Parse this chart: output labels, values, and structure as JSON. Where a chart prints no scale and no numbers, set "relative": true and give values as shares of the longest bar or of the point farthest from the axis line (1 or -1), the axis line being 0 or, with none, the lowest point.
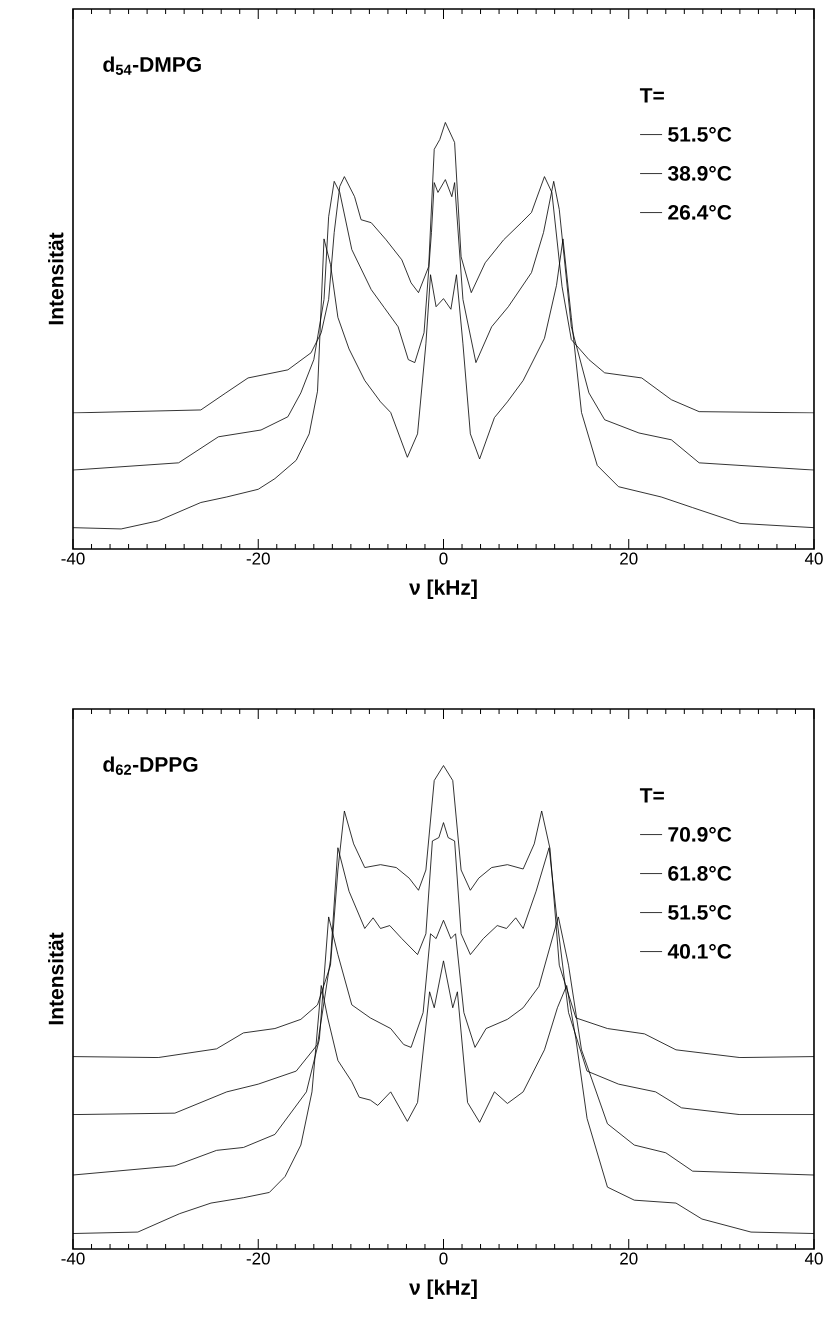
{
  "chart_data": [
    {
      "type": "line",
      "title": "d$_{54}$-DMPG",
      "xlabel": "ν [kHz]",
      "ylabel": "Intensität",
      "legend_title": "T=",
      "legend": "top right",
      "relative": true,
      "xlim": [
        -40,
        40
      ],
      "xticks": [
        -40,
        -20,
        0,
        20,
        40
      ],
      "series": [
        {
          "name": "51.5°C",
          "color": "#000000",
          "x": [
            -40,
            -26.2,
            -23.5,
            -21.1,
            -16.8,
            -14.3,
            -13.2,
            -12.4,
            -11.8,
            -11.2,
            -10.7,
            -9.6,
            -8.9,
            -7.8,
            -6.2,
            -4.5,
            -3.5,
            -2.7,
            -1.6,
            -1.0,
            -0.4,
            0.2,
            1.2,
            1.9,
            3.0,
            4.5,
            6.5,
            8.4,
            9.5,
            10.9,
            11.7,
            12.8,
            13.8,
            15.7,
            17.4,
            21.4,
            24.6,
            27.6,
            40
          ],
          "values": [
            0.319,
            0.326,
            0.366,
            0.401,
            0.42,
            0.46,
            0.507,
            0.585,
            0.742,
            0.85,
            0.873,
            0.826,
            0.772,
            0.765,
            0.725,
            0.678,
            0.624,
            0.601,
            0.662,
            0.937,
            0.96,
            1.0,
            0.953,
            0.685,
            0.601,
            0.671,
            0.725,
            0.765,
            0.789,
            0.873,
            0.836,
            0.615,
            0.491,
            0.444,
            0.413,
            0.401,
            0.35,
            0.322,
            0.319
          ]
        },
        {
          "name": "38.9°C",
          "color": "#000000",
          "x": [
            -40,
            -28.6,
            -24.3,
            -19.7,
            -16.8,
            -15.4,
            -14.0,
            -12.9,
            -12.4,
            -11.8,
            -11.2,
            -9.9,
            -7.8,
            -6.4,
            -4.9,
            -3.8,
            -3.1,
            -2.1,
            -1.3,
            -1.0,
            -0.6,
            0.2,
            0.9,
            1.2,
            2.1,
            3.5,
            5.2,
            7.0,
            9.5,
            10.8,
            11.9,
            12.5,
            13.8,
            15.7,
            17.4,
            21.1,
            24.6,
            27.6,
            40
          ],
          "values": [
            0.185,
            0.202,
            0.263,
            0.279,
            0.31,
            0.366,
            0.444,
            0.585,
            0.779,
            0.862,
            0.836,
            0.702,
            0.608,
            0.566,
            0.521,
            0.444,
            0.437,
            0.507,
            0.742,
            0.859,
            0.836,
            0.866,
            0.826,
            0.859,
            0.585,
            0.437,
            0.521,
            0.568,
            0.648,
            0.742,
            0.862,
            0.796,
            0.521,
            0.366,
            0.303,
            0.272,
            0.256,
            0.202,
            0.185
          ]
        },
        {
          "name": "26.4°C",
          "color": "#000000",
          "x": [
            -40,
            -34.8,
            -30.8,
            -26.2,
            -23.4,
            -20,
            -18.2,
            -15.9,
            -14.5,
            -13.6,
            -12.9,
            -12.2,
            -11.4,
            -10.2,
            -8.5,
            -6.8,
            -5.7,
            -3.9,
            -2.8,
            -1.9,
            -1.4,
            -0.8,
            0,
            0.8,
            1.4,
            2.1,
            2.9,
            3.9,
            5.5,
            6.9,
            8.6,
            10.9,
            12.2,
            12.9,
            13.8,
            14.9,
            16.6,
            18.9,
            23.5,
            26.9,
            32.0,
            40
          ],
          "values": [
            0.05,
            0.047,
            0.066,
            0.109,
            0.122,
            0.14,
            0.165,
            0.208,
            0.27,
            0.37,
            0.727,
            0.667,
            0.543,
            0.469,
            0.395,
            0.345,
            0.32,
            0.215,
            0.27,
            0.481,
            0.643,
            0.568,
            0.587,
            0.562,
            0.643,
            0.481,
            0.27,
            0.211,
            0.308,
            0.345,
            0.395,
            0.494,
            0.618,
            0.727,
            0.543,
            0.32,
            0.196,
            0.146,
            0.122,
            0.097,
            0.06,
            0.05
          ]
        }
      ]
    },
    {
      "type": "line",
      "title": "d$_{62}$-DPPG",
      "xlabel": "ν [kHz]",
      "ylabel": "Intensität",
      "legend_title": "T=",
      "legend": "top right",
      "relative": true,
      "xlim": [
        -40,
        40
      ],
      "xticks": [
        -40,
        -20,
        0,
        20,
        40
      ],
      "series": [
        {
          "name": "70.9°C",
          "color": "#000000",
          "x": [
            -40,
            -30.8,
            -24.5,
            -21.6,
            -18.2,
            -15.4,
            -13.6,
            -12.2,
            -11.4,
            -10.7,
            -9.7,
            -8.5,
            -6.8,
            -5.1,
            -3.7,
            -2.7,
            -1.9,
            -1.0,
            0,
            1.0,
            1.9,
            2.9,
            3.8,
            5.2,
            6.9,
            8.6,
            9.8,
            10.6,
            11.5,
            12.5,
            14.3,
            17.7,
            21.7,
            25.1,
            32,
            40
          ],
          "values": [
            0.398,
            0.396,
            0.414,
            0.447,
            0.456,
            0.475,
            0.505,
            0.587,
            0.784,
            0.906,
            0.838,
            0.789,
            0.795,
            0.789,
            0.767,
            0.742,
            0.784,
            0.969,
            1.0,
            0.969,
            0.784,
            0.742,
            0.767,
            0.789,
            0.795,
            0.786,
            0.838,
            0.906,
            0.828,
            0.587,
            0.478,
            0.456,
            0.445,
            0.412,
            0.396,
            0.398
          ]
        },
        {
          "name": "61.8°C",
          "color": "#000000",
          "x": [
            -40,
            -29.0,
            -23.4,
            -20,
            -15.9,
            -13.6,
            -12.2,
            -11.4,
            -10.2,
            -8.5,
            -7.6,
            -6.8,
            -5.8,
            -4.5,
            -2.8,
            -1.9,
            -1.2,
            -0.5,
            0,
            0.5,
            1.2,
            1.9,
            2.9,
            4.3,
            5.8,
            6.8,
            7.8,
            8.6,
            10.0,
            11.4,
            12.3,
            13.5,
            15.5,
            18.9,
            22.9,
            25.7,
            32,
            40
          ],
          "values": [
            0.278,
            0.281,
            0.325,
            0.341,
            0.368,
            0.423,
            0.598,
            0.83,
            0.74,
            0.663,
            0.685,
            0.663,
            0.669,
            0.642,
            0.609,
            0.652,
            0.844,
            0.851,
            0.882,
            0.851,
            0.844,
            0.652,
            0.609,
            0.642,
            0.669,
            0.663,
            0.685,
            0.663,
            0.74,
            0.83,
            0.674,
            0.489,
            0.368,
            0.341,
            0.325,
            0.292,
            0.278,
            0.278
          ]
        },
        {
          "name": "51.5°C",
          "color": "#000000",
          "x": [
            -40,
            -29,
            -24.5,
            -21.6,
            -18.2,
            -14.8,
            -13.4,
            -12.4,
            -11.4,
            -9.9,
            -7.9,
            -5.7,
            -4.3,
            -3.5,
            -2.2,
            -1.4,
            -0.8,
            0,
            0.8,
            1.3,
            2.2,
            3.4,
            4.6,
            6.9,
            8.6,
            10.3,
            12.4,
            13.5,
            14.9,
            17.7,
            20.6,
            24.0,
            26.9,
            40
          ],
          "values": [
            0.153,
            0.172,
            0.204,
            0.21,
            0.237,
            0.325,
            0.434,
            0.687,
            0.609,
            0.505,
            0.478,
            0.456,
            0.423,
            0.417,
            0.489,
            0.652,
            0.642,
            0.68,
            0.642,
            0.652,
            0.489,
            0.417,
            0.456,
            0.475,
            0.499,
            0.543,
            0.687,
            0.587,
            0.412,
            0.259,
            0.215,
            0.199,
            0.161,
            0.153
          ]
        },
        {
          "name": "40.1°C",
          "color": "#000000",
          "x": [
            -40,
            -33.0,
            -28.5,
            -25.1,
            -21.6,
            -18.8,
            -17.1,
            -15.4,
            -14.2,
            -13.2,
            -12.5,
            -11.4,
            -9.9,
            -9.1,
            -7.9,
            -7.1,
            -5.7,
            -3.9,
            -2.8,
            -1.5,
            -1.0,
            0,
            1.0,
            1.5,
            2.6,
            3.9,
            5.5,
            6.9,
            8.6,
            10.9,
            12.3,
            13.3,
            14.3,
            15.5,
            17.7,
            20.6,
            25.1,
            27.9,
            33.2,
            40
          ],
          "values": [
            0.032,
            0.035,
            0.073,
            0.095,
            0.106,
            0.117,
            0.15,
            0.215,
            0.325,
            0.545,
            0.478,
            0.39,
            0.346,
            0.314,
            0.308,
            0.297,
            0.325,
            0.264,
            0.303,
            0.532,
            0.499,
            0.596,
            0.499,
            0.532,
            0.303,
            0.262,
            0.325,
            0.301,
            0.325,
            0.412,
            0.499,
            0.545,
            0.434,
            0.27,
            0.128,
            0.101,
            0.095,
            0.062,
            0.035,
            0.032
          ]
        }
      ]
    }
  ]
}
